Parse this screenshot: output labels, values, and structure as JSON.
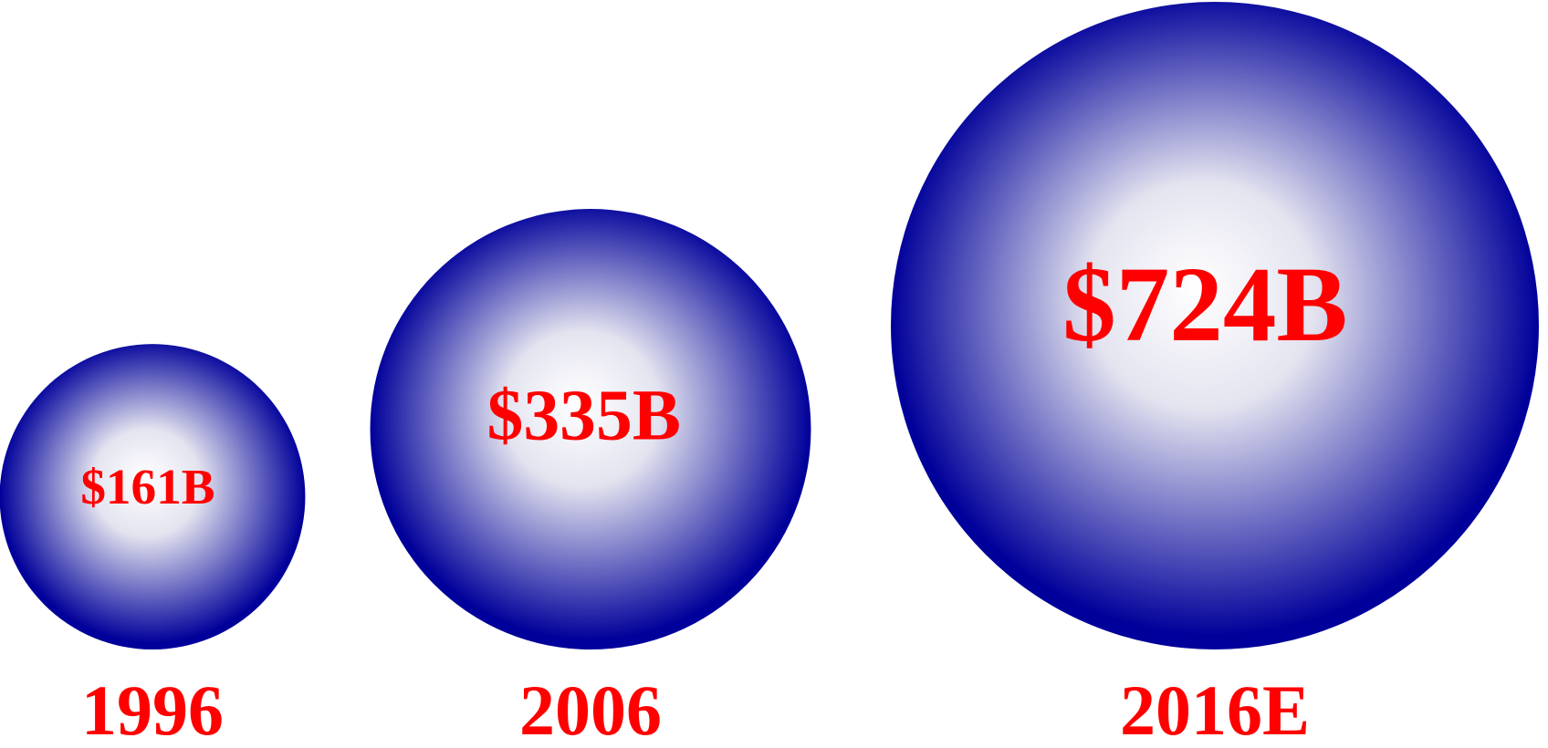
{
  "chart_data": {
    "type": "bubble",
    "categories": [
      "1996",
      "2006",
      "2016E"
    ],
    "values": [
      161,
      335,
      724
    ],
    "value_labels": [
      "$161B",
      "$335B",
      "$724B"
    ],
    "color": "#00009a",
    "label_color": "#ff0000"
  }
}
